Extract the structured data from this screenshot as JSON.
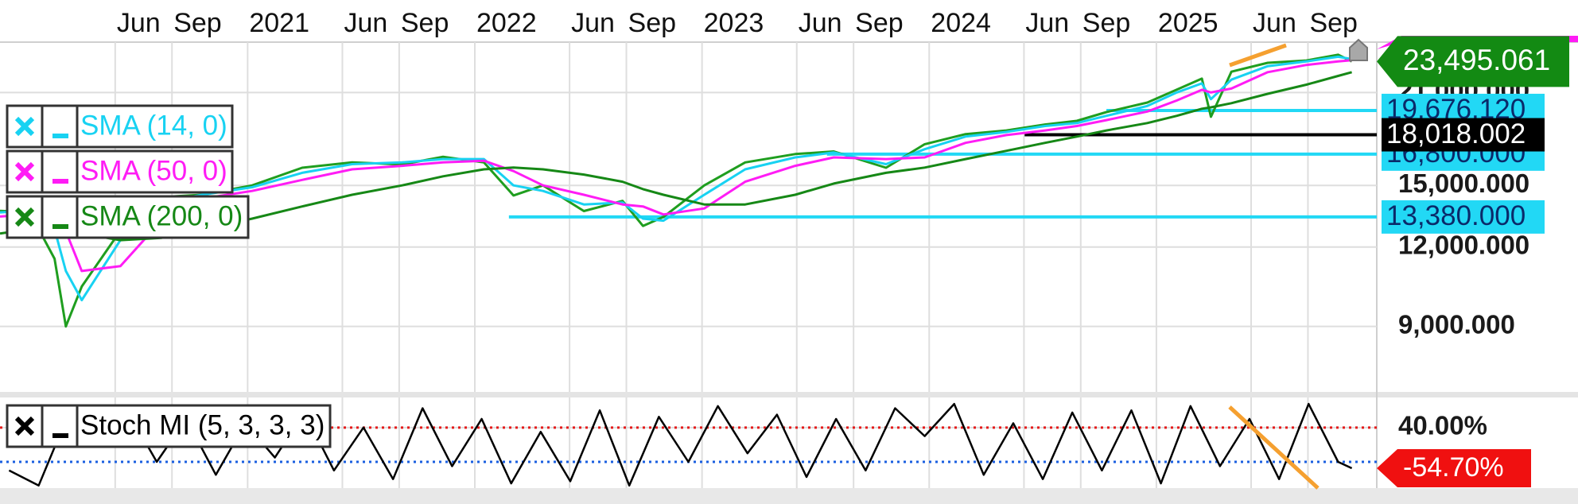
{
  "chart_data": [
    {
      "type": "line",
      "log_scale": true,
      "grid": true,
      "legend": "top-left",
      "xlim": [
        2019.91,
        2025.97
      ],
      "ylim": [
        7100,
        25200
      ],
      "xticks": [
        {
          "value": 2020.417,
          "label": "Jun"
        },
        {
          "value": 2020.667,
          "label": "Sep"
        },
        2021,
        {
          "value": 2021.417,
          "label": "Jun"
        },
        {
          "value": 2021.667,
          "label": "Sep"
        },
        2022,
        {
          "value": 2022.417,
          "label": "Jun"
        },
        {
          "value": 2022.667,
          "label": "Sep"
        },
        2023,
        {
          "value": 2023.417,
          "label": "Jun"
        },
        {
          "value": 2023.667,
          "label": "Sep"
        },
        2024,
        {
          "value": 2024.417,
          "label": "Jun"
        },
        {
          "value": 2024.667,
          "label": "Sep"
        },
        2025,
        {
          "value": 2025.417,
          "label": "Jun"
        },
        {
          "value": 2025.667,
          "label": "Sep"
        }
      ],
      "yticks": [
        {
          "value": 9000,
          "label": "9,000.000"
        },
        {
          "value": 12000,
          "label": "12,000.000"
        },
        {
          "value": 15000,
          "label": "15,000.000"
        },
        {
          "value": 21000,
          "label": "21,000.000"
        }
      ],
      "x": [
        2019.91,
        2020.04,
        2020.15,
        2020.2,
        2020.27,
        2020.44,
        2020.62,
        2020.8,
        2021.02,
        2021.24,
        2021.46,
        2021.68,
        2021.86,
        2022.04,
        2022.17,
        2022.3,
        2022.48,
        2022.65,
        2022.74,
        2022.83,
        2023.01,
        2023.19,
        2023.41,
        2023.58,
        2023.81,
        2023.98,
        2024.16,
        2024.34,
        2024.51,
        2024.65,
        2024.78,
        2024.96,
        2025.09,
        2025.2,
        2025.24,
        2025.33,
        2025.49,
        2025.66,
        2025.8,
        2025.86
      ],
      "values": [
        13680,
        13620,
        11500,
        9000,
        10400,
        12730,
        14380,
        14500,
        15000,
        15990,
        16300,
        16180,
        16640,
        16300,
        14460,
        15000,
        13670,
        14180,
        12950,
        13380,
        15000,
        16300,
        16800,
        16960,
        15990,
        17410,
        18060,
        18300,
        18700,
        18950,
        19560,
        20250,
        21220,
        22080,
        19230,
        22640,
        23380,
        23580,
        24080,
        23495.061
      ],
      "color": "#1f9e1f",
      "last_label": "23,495.061",
      "last_color": "#138a13",
      "series": [
        {
          "name": "SMA (14, 0)",
          "color": "#18d2f2",
          "values": [
            13600,
            13700,
            12800,
            11000,
            9900,
            12300,
            14100,
            14500,
            14900,
            15700,
            16200,
            16300,
            16500,
            16500,
            15000,
            14700,
            14000,
            14100,
            13300,
            13200,
            14500,
            15900,
            16600,
            16900,
            16200,
            17100,
            17900,
            18200,
            18600,
            18800,
            19300,
            20000,
            21000,
            21700,
            20500,
            22000,
            23100,
            23500,
            23900,
            23700
          ]
        },
        {
          "name": "SMA (50, 0)",
          "color": "#ff1cf5",
          "values": [
            13400,
            13500,
            13300,
            12700,
            11000,
            11200,
            13200,
            14300,
            14700,
            15300,
            15900,
            16100,
            16300,
            16400,
            15800,
            15000,
            14500,
            14000,
            13900,
            13500,
            13800,
            15200,
            16100,
            16600,
            16500,
            16600,
            17500,
            18000,
            18300,
            18600,
            19000,
            19600,
            20400,
            21200,
            21000,
            21300,
            22600,
            23200,
            23500,
            23600
          ]
        },
        {
          "name": "SMA (200, 0)",
          "color": "#168816",
          "values": [
            12600,
            12800,
            12900,
            12800,
            12600,
            12300,
            12400,
            12800,
            13300,
            13900,
            14500,
            15000,
            15500,
            15900,
            16000,
            15900,
            15600,
            15200,
            14800,
            14500,
            14000,
            14000,
            14500,
            15100,
            15700,
            16000,
            16500,
            17000,
            17500,
            17900,
            18300,
            18800,
            19300,
            19800,
            19900,
            20200,
            20900,
            21600,
            22300,
            22600
          ]
        }
      ],
      "levels": [
        {
          "value": 19676.12,
          "label": "19,676.120",
          "start": 2024.78,
          "color": "#22d8f5",
          "text_color": "#0a2a6a"
        },
        {
          "value": 16800,
          "label": "16,800.000",
          "start": 2023.55,
          "color": "#22d8f5",
          "text_color": "#0a2a6a"
        },
        {
          "value": 18018.002,
          "label": "18,018.002",
          "start": 2024.42,
          "color": "#000000",
          "text_color": "#ffffff"
        },
        {
          "value": 13380,
          "label": "13,380.000",
          "start": 2022.15,
          "color": "#22d8f5",
          "text_color": "#0a2a6a"
        }
      ]
    },
    {
      "type": "line",
      "grid": true,
      "legend": "top-left",
      "xlim": [
        2019.91,
        2025.97
      ],
      "ylim": [
        -101,
        110
      ],
      "yticks": [
        {
          "value": 40,
          "label": "40.00%"
        }
      ],
      "hlines": [
        {
          "value": 40,
          "color": "#e41b1b"
        },
        {
          "value": -40,
          "color": "#1a5fe0"
        }
      ],
      "x": [
        2019.95,
        2020.08,
        2020.21,
        2020.34,
        2020.47,
        2020.6,
        2020.73,
        2020.86,
        2020.99,
        2021.12,
        2021.25,
        2021.38,
        2021.51,
        2021.64,
        2021.77,
        2021.9,
        2022.03,
        2022.16,
        2022.29,
        2022.42,
        2022.55,
        2022.68,
        2022.81,
        2022.94,
        2023.07,
        2023.2,
        2023.33,
        2023.46,
        2023.59,
        2023.72,
        2023.85,
        2023.98,
        2024.11,
        2024.24,
        2024.37,
        2024.5,
        2024.63,
        2024.76,
        2024.89,
        2025.02,
        2025.15,
        2025.28,
        2025.41,
        2025.54,
        2025.67,
        2025.8,
        2025.86
      ],
      "series": [
        {
          "name": "Stoch MI (5, 3, 3, 3)",
          "color": "#000000",
          "values": [
            -60,
            -95,
            70,
            20,
            80,
            -40,
            60,
            -70,
            50,
            -30,
            75,
            -60,
            40,
            -80,
            85,
            -50,
            60,
            -90,
            30,
            -85,
            80,
            -95,
            65,
            -40,
            90,
            -20,
            70,
            -75,
            60,
            -60,
            85,
            20,
            95,
            -70,
            50,
            -80,
            75,
            -60,
            80,
            -90,
            90,
            -50,
            60,
            -80,
            95,
            -40,
            -54.7
          ]
        }
      ],
      "last_label": "-54.70%",
      "last_color": "#f01010"
    }
  ]
}
